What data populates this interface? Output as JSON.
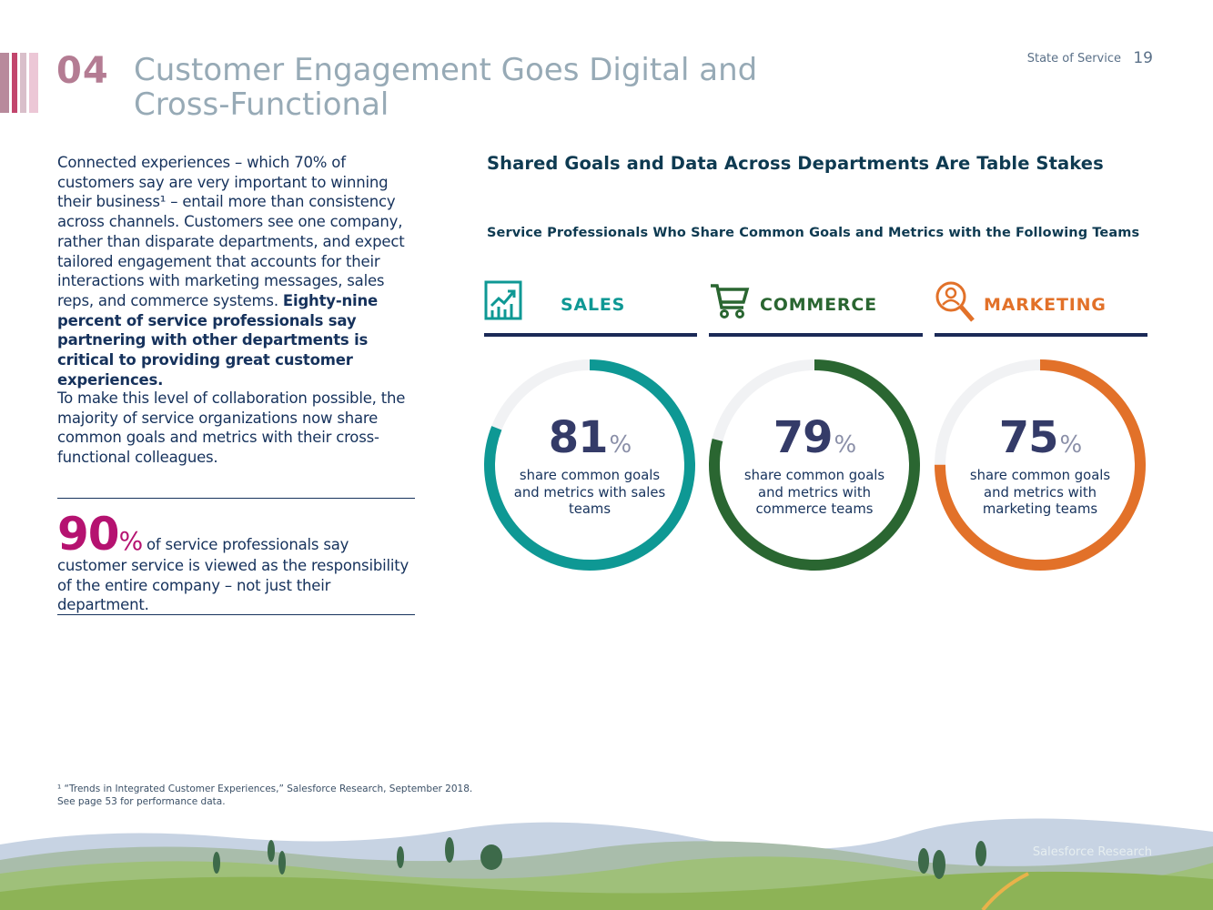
{
  "header": {
    "section_number": "04",
    "title_line1": "Customer Engagement Goes Digital and",
    "title_line2": "Cross-Functional",
    "running_head": "State of Service",
    "page_number": "19",
    "colors": {
      "section_number": "#b47c93",
      "title": "#97aab6",
      "stripes": [
        "#b88a9c",
        "#ffffff",
        "#c2456c",
        "#ffffff",
        "#d9bfca",
        "#ffffff",
        "#ecc7d6"
      ]
    }
  },
  "body": {
    "para1_text": "Connected experiences – which 70% of customers say are very important to winning their business¹ – entail more than consistency across channels. Customers see one company, rather than disparate departments, and expect tailored engagement that accounts for their interactions with marketing messages, sales reps, and commerce systems. ",
    "para1_bold": "Eighty-nine percent of service professionals say partnering with other departments is critical to providing great customer experiences.",
    "para2": "To make this level of collaboration possible, the majority of service organizations now share common goals and metrics with their cross-functional colleagues."
  },
  "stat": {
    "number": "90",
    "unit": "%",
    "text": "of service professionals say customer service is viewed as the responsibility of the entire company – not just their department."
  },
  "chart_data": {
    "type": "donut",
    "title": "Shared Goals and Data Across Departments Are Table Stakes",
    "subtitle": "Service Professionals Who Share Common Goals and Metrics with the Following Teams",
    "unit": "%",
    "track_color": "#f1f2f4",
    "series": [
      {
        "name": "SALES",
        "value": 81,
        "description": "share common goals and metrics with sales teams",
        "color": "#0e9894",
        "icon": "chart-growth-icon"
      },
      {
        "name": "COMMERCE",
        "value": 79,
        "description": "share common goals and metrics with commerce teams",
        "color": "#2a6631",
        "icon": "shopping-cart-icon"
      },
      {
        "name": "MARKETING",
        "value": 75,
        "description": "share common goals and metrics with marketing teams",
        "color": "#e27129",
        "icon": "magnifier-person-icon"
      }
    ]
  },
  "footnote": {
    "line1": "¹ “Trends in Integrated Customer Experiences,” Salesforce Research, September 2018.",
    "line2": "See page 53 for performance data."
  },
  "footer": {
    "brand": "Salesforce Research"
  }
}
